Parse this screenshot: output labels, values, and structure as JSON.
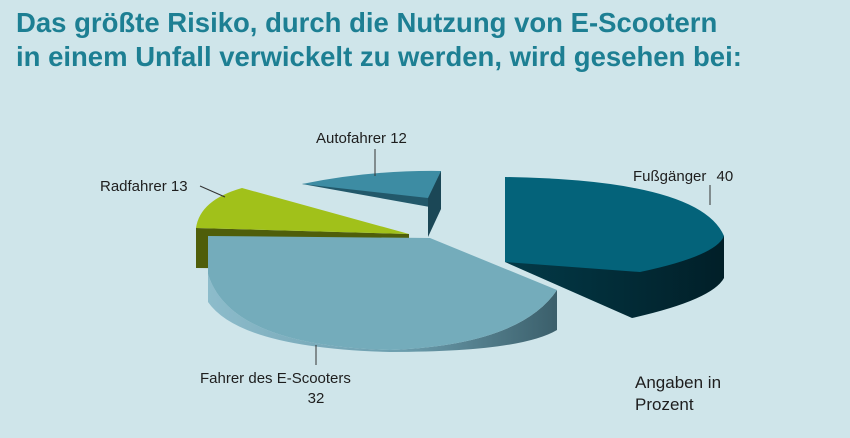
{
  "title_line1": "Das größte Risiko, durch die Nutzung von E-Scootern",
  "title_line2": "in einem Unfall verwickelt zu werden, wird gesehen bei:",
  "note_line1": "Angaben in",
  "note_line2": "Prozent",
  "chart_data": {
    "type": "pie",
    "title": "Das größte Risiko, durch die Nutzung von E-Scootern in einem Unfall verwickelt zu werden, wird gesehen bei:",
    "unit": "Prozent",
    "three_d": true,
    "exploded": true,
    "slices": [
      {
        "label": "Fußgänger",
        "value": 40,
        "value_text": "40",
        "color": "#04637a",
        "side_color": "#022e3a"
      },
      {
        "label": "Fahrer des E-Scooters",
        "value": 32,
        "value_text": "32",
        "color": "#74acbb",
        "side_color": "#3e6876"
      },
      {
        "label": "Radfahrer",
        "value": 13,
        "value_text": "13",
        "color": "#a1c11a",
        "side_color": "#4f5e0a"
      },
      {
        "label": "Autofahrer",
        "value": 12,
        "value_text": "12",
        "color": "#3d8ca3",
        "side_color": "#1b4756"
      }
    ]
  }
}
